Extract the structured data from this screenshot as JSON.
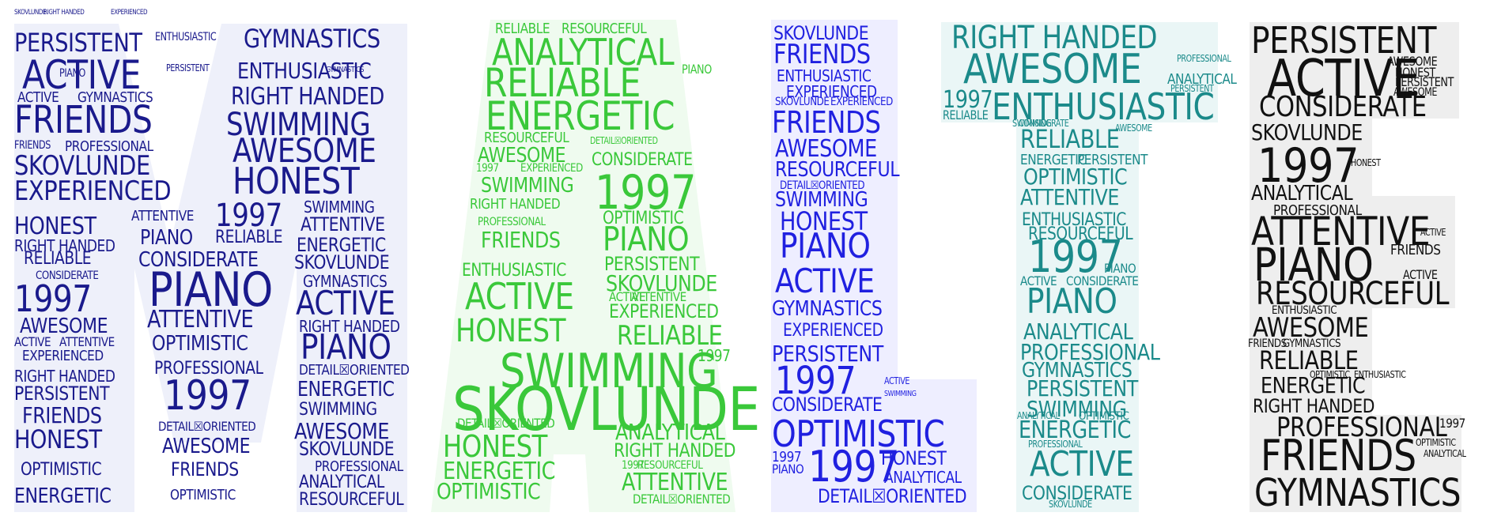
{
  "colors": {
    "navy": "#1a1a8c",
    "green": "#3ac83a",
    "blue": "#2020e0",
    "teal": "#1b8a8a",
    "black": "#111111",
    "bg_m": "#eef0fa",
    "bg_a": "#effbef",
    "bg_l": "#eeeeff",
    "bg_t": "#eaf6f6",
    "bg_e": "#eeeeee"
  },
  "letters": [
    {
      "letter": "M",
      "color_key": "navy",
      "words": [
        "SKOVLUNDE",
        "RIGHT HANDED",
        "EXPERIENCED",
        "PERSISTENT",
        "ACTIVE",
        "PIANO",
        "PERSISTENT",
        "ACTIVE",
        "GYMNASTICS",
        "FRIENDS",
        "FRIENDS",
        "PROFESSIONAL",
        "SKOVLUNDE",
        "EXPERIENCED",
        "HONEST",
        "RIGHT HANDED",
        "RELIABLE",
        "CONSIDERATE",
        "1997",
        "AWESOME",
        "ACTIVE",
        "ATTENTIVE",
        "EXPERIENCED",
        "RIGHT HANDED",
        "PERSISTENT",
        "FRIENDS",
        "HONEST",
        "OPTIMISTIC",
        "ENERGETIC",
        "ENTHUSIASTIC",
        "ATTENTIVE",
        "PIANO",
        "CONSIDERATE",
        "PIANO",
        "ATTENTIVE",
        "OPTIMISTIC",
        "PROFESSIONAL",
        "1997",
        "DETAIL☒ORIENTED",
        "AWESOME",
        "FRIENDS",
        "OPTIMISTIC",
        "GYMNASTICS",
        "ENTHUSIASTIC",
        "RIGHT HANDED",
        "SWIMMING",
        "AWESOME",
        "HONEST",
        "1997",
        "RELIABLE",
        "SWIMMING",
        "ATTENTIVE",
        "ENERGETIC",
        "SKOVLUNDE",
        "GYMNASTICS",
        "ACTIVE",
        "RIGHT HANDED",
        "PIANO",
        "DETAIL☒ORIENTED",
        "ENERGETIC",
        "SWIMMING",
        "AWESOME",
        "SKOVLUNDE",
        "PROFESSIONAL",
        "ANALYTICAL",
        "RESOURCEFUL",
        "GYMNASTICS"
      ]
    },
    {
      "letter": "A",
      "color_key": "green",
      "words": [
        "RELIABLE",
        "RESOURCEFUL",
        "ANALYTICAL",
        "RELIABLE",
        "ENERGETIC",
        "RESOURCEFUL",
        "AWESOME",
        "1997",
        "EXPERIENCED",
        "SWIMMING",
        "RIGHT HANDED",
        "PROFESSIONAL",
        "FRIENDS",
        "ENTHUSIASTIC",
        "ACTIVE",
        "HONEST",
        "SWIMMING",
        "SKOVLUNDE",
        "DETAIL☒ORIENTED",
        "HONEST",
        "ENERGETIC",
        "OPTIMISTIC",
        "DETAIL☒ORIENTED",
        "CONSIDERATE",
        "1997",
        "OPTIMISTIC",
        "PIANO",
        "PERSISTENT",
        "SKOVLUNDE",
        "ACTIVE",
        "ATTENTIVE",
        "EXPERIENCED",
        "RELIABLE",
        "ANALYTICAL",
        "RIGHT HANDED",
        "1997",
        "RESOURCEFUL",
        "ATTENTIVE",
        "DETAIL☒ORIENTED",
        "PIANO",
        "1997"
      ]
    },
    {
      "letter": "L",
      "color_key": "blue",
      "words": [
        "SKOVLUNDE",
        "FRIENDS",
        "ENTHUSIASTIC",
        "EXPERIENCED",
        "SKOVLUNDE",
        "EXPERIENCED",
        "FRIENDS",
        "AWESOME",
        "RESOURCEFUL",
        "DETAIL☒ORIENTED",
        "SWIMMING",
        "HONEST",
        "PIANO",
        "ACTIVE",
        "GYMNASTICS",
        "EXPERIENCED",
        "PERSISTENT",
        "1997",
        "CONSIDERATE",
        "OPTIMISTIC",
        "1997",
        "1997",
        "PIANO",
        "HONEST",
        "ANALYTICAL",
        "DETAIL☒ORIENTED",
        "ACTIVE",
        "SWIMMING"
      ]
    },
    {
      "letter": "T",
      "color_key": "teal",
      "words": [
        "RIGHT HANDED",
        "AWESOME",
        "1997",
        "ENTHUSIASTIC",
        "RELIABLE",
        "PROFESSIONAL",
        "ANALYTICAL",
        "PERSISTENT",
        "SWIMMING",
        "CONSIDERATE",
        "RELIABLE",
        "ENERGETIC",
        "PERSISTENT",
        "OPTIMISTIC",
        "ATTENTIVE",
        "ENTHUSIASTIC",
        "RESOURCEFUL",
        "1997",
        "PIANO",
        "ACTIVE",
        "CONSIDERATE",
        "PIANO",
        "ANALYTICAL",
        "PROFESSIONAL",
        "GYMNASTICS",
        "PERSISTENT",
        "SWIMMING",
        "ENERGETIC",
        "ACTIVE",
        "CONSIDERATE",
        "SKOVLUNDE",
        "ANALYTICAL",
        "OPTIMISTIC",
        "PROFESSIONAL",
        "AWESOME"
      ]
    },
    {
      "letter": "E",
      "color_key": "black",
      "words": [
        "PERSISTENT",
        "ACTIVE",
        "CONSIDERATE",
        "AWESOME",
        "HONEST",
        "PERSISTENT",
        "AWESOME",
        "SKOVLUNDE",
        "1997",
        "HONEST",
        "ANALYTICAL",
        "PROFESSIONAL",
        "ATTENTIVE",
        "ACTIVE",
        "PIANO",
        "FRIENDS",
        "ACTIVE",
        "RESOURCEFUL",
        "ENTHUSIASTIC",
        "AWESOME",
        "FRIENDS",
        "GYMNASTICS",
        "RELIABLE",
        "ENERGETIC",
        "OPTIMISTIC",
        "ENTHUSIASTIC",
        "RIGHT HANDED",
        "PROFESSIONAL",
        "1997",
        "FRIENDS",
        "GYMNASTICS",
        "OPTIMISTIC",
        "ANALYTICAL"
      ]
    }
  ]
}
